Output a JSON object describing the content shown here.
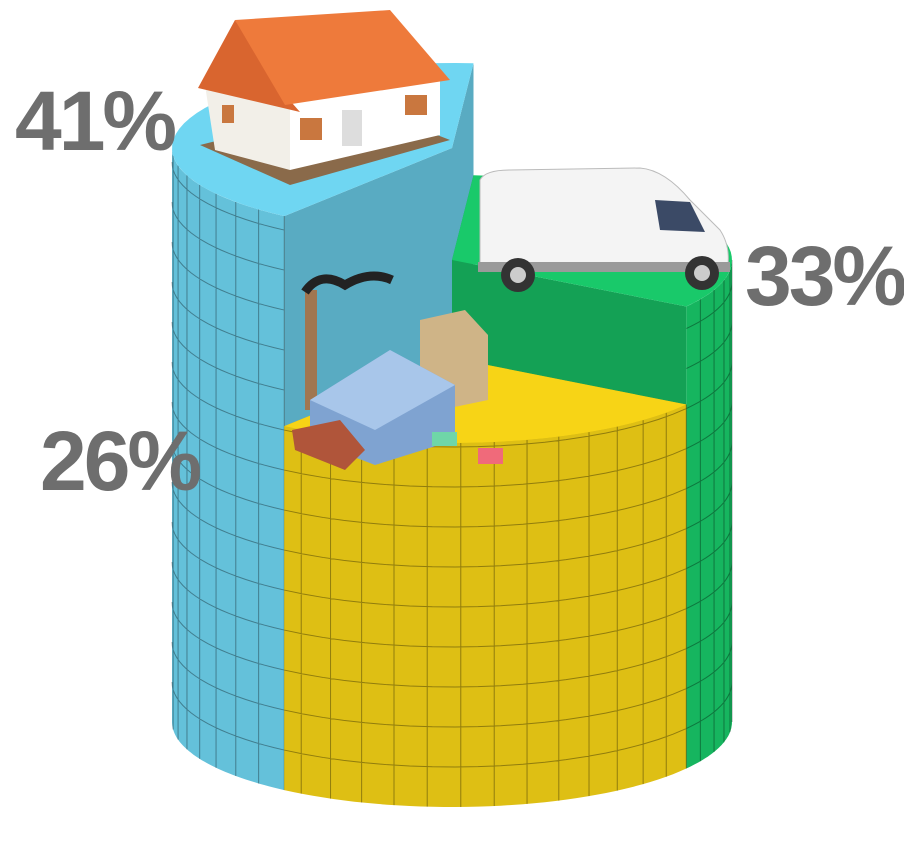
{
  "chart_data": {
    "type": "pie3d",
    "values": [
      41,
      33,
      26
    ],
    "value_labels": [
      "41%",
      "33%",
      "26%"
    ],
    "colors": [
      "#6fd6f2",
      "#19c96a",
      "#f7d416"
    ]
  }
}
